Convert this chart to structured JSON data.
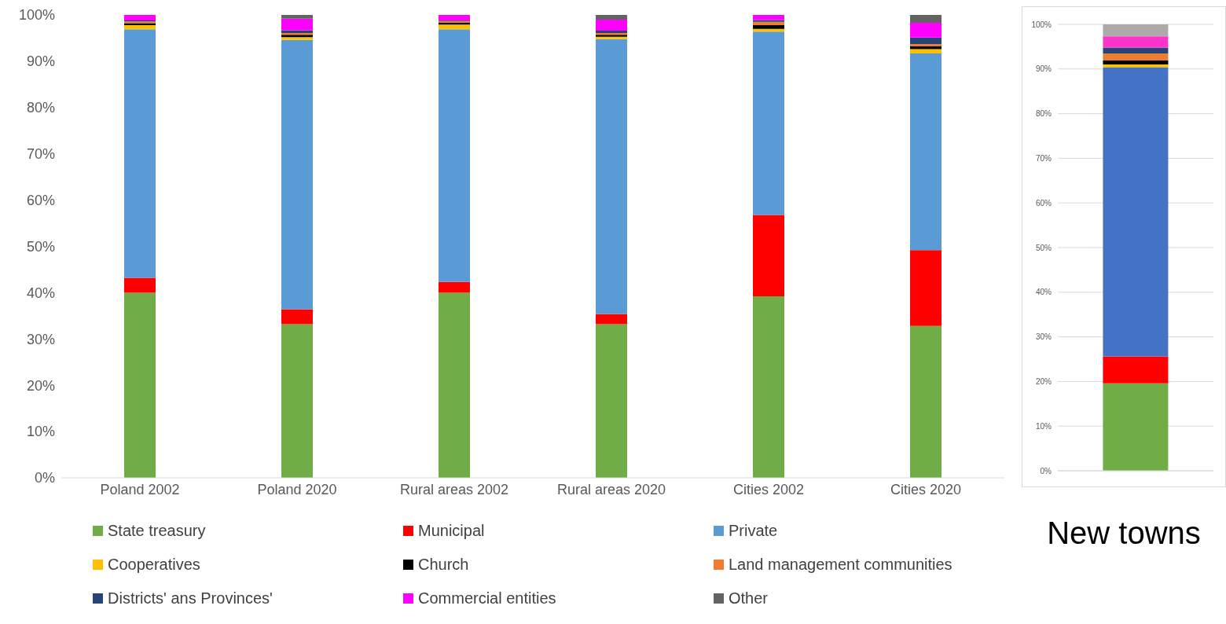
{
  "chart_data": [
    {
      "type": "bar",
      "stacked": true,
      "categories": [
        "Poland 2002",
        "Poland 2020",
        "Rural areas 2002",
        "Rural areas 2020",
        "Cities 2002",
        "Cities 2020"
      ],
      "series": [
        {
          "name": "State treasury",
          "color": "#70ad47",
          "values": [
            40.0,
            33.2,
            40.0,
            33.2,
            39.2,
            32.8
          ]
        },
        {
          "name": "Municipal",
          "color": "#ff0000",
          "values": [
            3.2,
            3.2,
            2.3,
            2.2,
            17.6,
            16.4
          ]
        },
        {
          "name": "Private",
          "color": "#5b9bd5",
          "values": [
            53.7,
            58.2,
            54.6,
            59.4,
            39.6,
            42.5
          ]
        },
        {
          "name": "Cooperatives",
          "color": "#ffc000",
          "values": [
            0.9,
            0.6,
            1.0,
            0.5,
            0.6,
            0.9
          ]
        },
        {
          "name": "Church",
          "color": "#000000",
          "values": [
            0.4,
            0.5,
            0.4,
            0.4,
            0.8,
            0.6
          ]
        },
        {
          "name": "Land management communities",
          "color": "#ed7d31",
          "values": [
            0.4,
            0.4,
            0.4,
            0.4,
            0.7,
            0.5
          ]
        },
        {
          "name": "Districts' ans Provinces'",
          "color": "#264478",
          "values": [
            0.2,
            0.6,
            0.1,
            0.5,
            0.4,
            1.4
          ]
        },
        {
          "name": "Commercial entities",
          "color": "#ff00ff",
          "values": [
            1.2,
            2.5,
            1.2,
            2.4,
            1.1,
            3.2
          ]
        },
        {
          "name": "Other",
          "color": "#636363",
          "values": [
            0,
            0.8,
            0,
            1.0,
            0,
            1.7
          ]
        }
      ],
      "ylim": [
        0,
        100
      ],
      "yticks": [
        {
          "value": 0,
          "label": "0%"
        },
        {
          "value": 10,
          "label": "10%"
        },
        {
          "value": 20,
          "label": "20%"
        },
        {
          "value": 30,
          "label": "30%"
        },
        {
          "value": 40,
          "label": "40%"
        },
        {
          "value": 50,
          "label": "50%"
        },
        {
          "value": 60,
          "label": "60%"
        },
        {
          "value": 70,
          "label": "70%"
        },
        {
          "value": 80,
          "label": "80%"
        },
        {
          "value": 90,
          "label": "90%"
        },
        {
          "value": 100,
          "label": "100%"
        }
      ],
      "grid": false,
      "legend": "bottom"
    },
    {
      "type": "bar",
      "stacked": true,
      "title": "New towns",
      "categories": [
        null
      ],
      "series": [
        {
          "color": "#70ad47",
          "values": [
            19.6
          ]
        },
        {
          "color": "#ff0000",
          "values": [
            6.0
          ]
        },
        {
          "color": "#4472c4",
          "values": [
            64.8
          ]
        },
        {
          "color": "#ffc000",
          "values": [
            0.6
          ]
        },
        {
          "color": "#000000",
          "values": [
            0.9
          ]
        },
        {
          "color": "#ed7d31",
          "values": [
            1.6
          ]
        },
        {
          "color": "#264478",
          "values": [
            1.3
          ]
        },
        {
          "color": "#ff33cc",
          "values": [
            2.5
          ]
        },
        {
          "color": "#aeaaaa",
          "values": [
            2.7
          ]
        }
      ],
      "ylim": [
        0,
        100
      ],
      "yticks": [
        {
          "value": 0,
          "label": "0%"
        },
        {
          "value": 10,
          "label": "10%"
        },
        {
          "value": 20,
          "label": "20%"
        },
        {
          "value": 30,
          "label": "30%"
        },
        {
          "value": 40,
          "label": "40%"
        },
        {
          "value": 50,
          "label": "50%"
        },
        {
          "value": 60,
          "label": "60%"
        },
        {
          "value": 70,
          "label": "70%"
        },
        {
          "value": 80,
          "label": "80%"
        },
        {
          "value": 90,
          "label": "90%"
        },
        {
          "value": 100,
          "label": "100%"
        }
      ],
      "grid": "y",
      "legend": false
    }
  ]
}
